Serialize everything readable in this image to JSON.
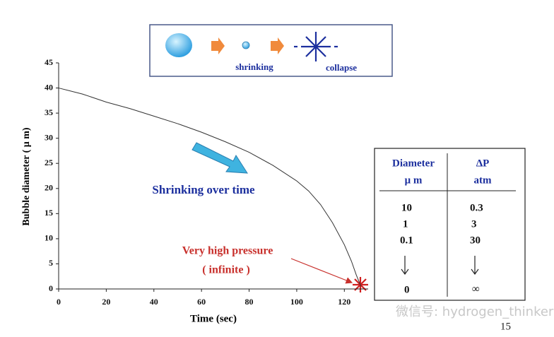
{
  "chart_data": {
    "type": "line",
    "xlabel": "Time (sec)",
    "ylabel": "Bubble diameter ( μ m)",
    "x": [
      0,
      10,
      20,
      30,
      40,
      50,
      60,
      70,
      80,
      90,
      100,
      105,
      110,
      115,
      120,
      123,
      125,
      127
    ],
    "series": [
      {
        "name": "Bubble diameter",
        "color": "#333333",
        "values": [
          40,
          38.8,
          37.2,
          35.9,
          34.4,
          32.9,
          31.2,
          29.3,
          27.2,
          24.6,
          21.5,
          19.5,
          16.8,
          13.2,
          8.8,
          5.5,
          2.8,
          0.5
        ]
      }
    ],
    "xlim": [
      0,
      130
    ],
    "ylim": [
      0,
      45
    ],
    "xticks": [
      0,
      20,
      40,
      60,
      80,
      100,
      120
    ],
    "yticks": [
      0,
      5,
      10,
      15,
      20,
      25,
      30,
      35,
      40,
      45
    ],
    "annotations": [
      "Shrinking over time",
      "Very high pressure",
      "( infinite )"
    ]
  },
  "diagram": {
    "labels": [
      "shrinking",
      "collapse"
    ]
  },
  "table": {
    "header": [
      [
        "Diameter",
        "μ m"
      ],
      [
        "ΔP",
        "atm"
      ]
    ],
    "rows": [
      [
        10,
        0.3
      ],
      [
        1,
        3
      ],
      [
        0.1,
        30
      ],
      [
        0,
        "∞"
      ]
    ]
  },
  "watermark": "微信号: hydrogen_thinker",
  "page_number": "15"
}
